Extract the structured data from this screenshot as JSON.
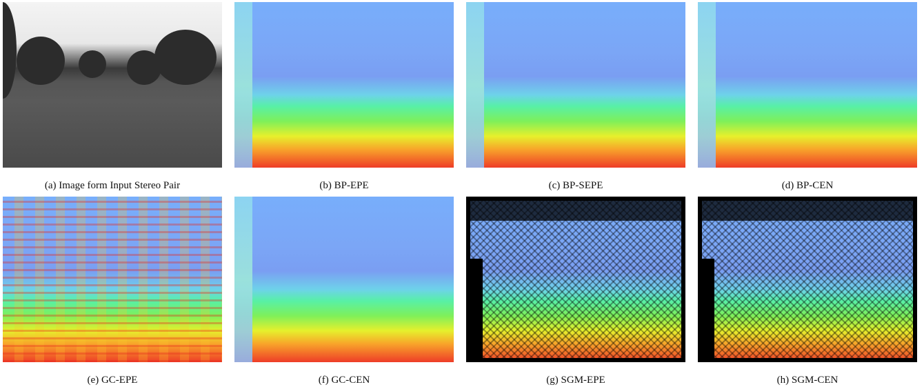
{
  "figure": {
    "panels": [
      {
        "caption": "(a) Image form Input Stereo Pair"
      },
      {
        "caption": "(b) BP-EPE"
      },
      {
        "caption": "(c) BP-SEPE"
      },
      {
        "caption": "(d) BP-CEN"
      },
      {
        "caption": "(e) GC-EPE"
      },
      {
        "caption": "(f) GC-CEN"
      },
      {
        "caption": "(g) SGM-EPE"
      },
      {
        "caption": "(h) SGM-CEN"
      }
    ]
  }
}
